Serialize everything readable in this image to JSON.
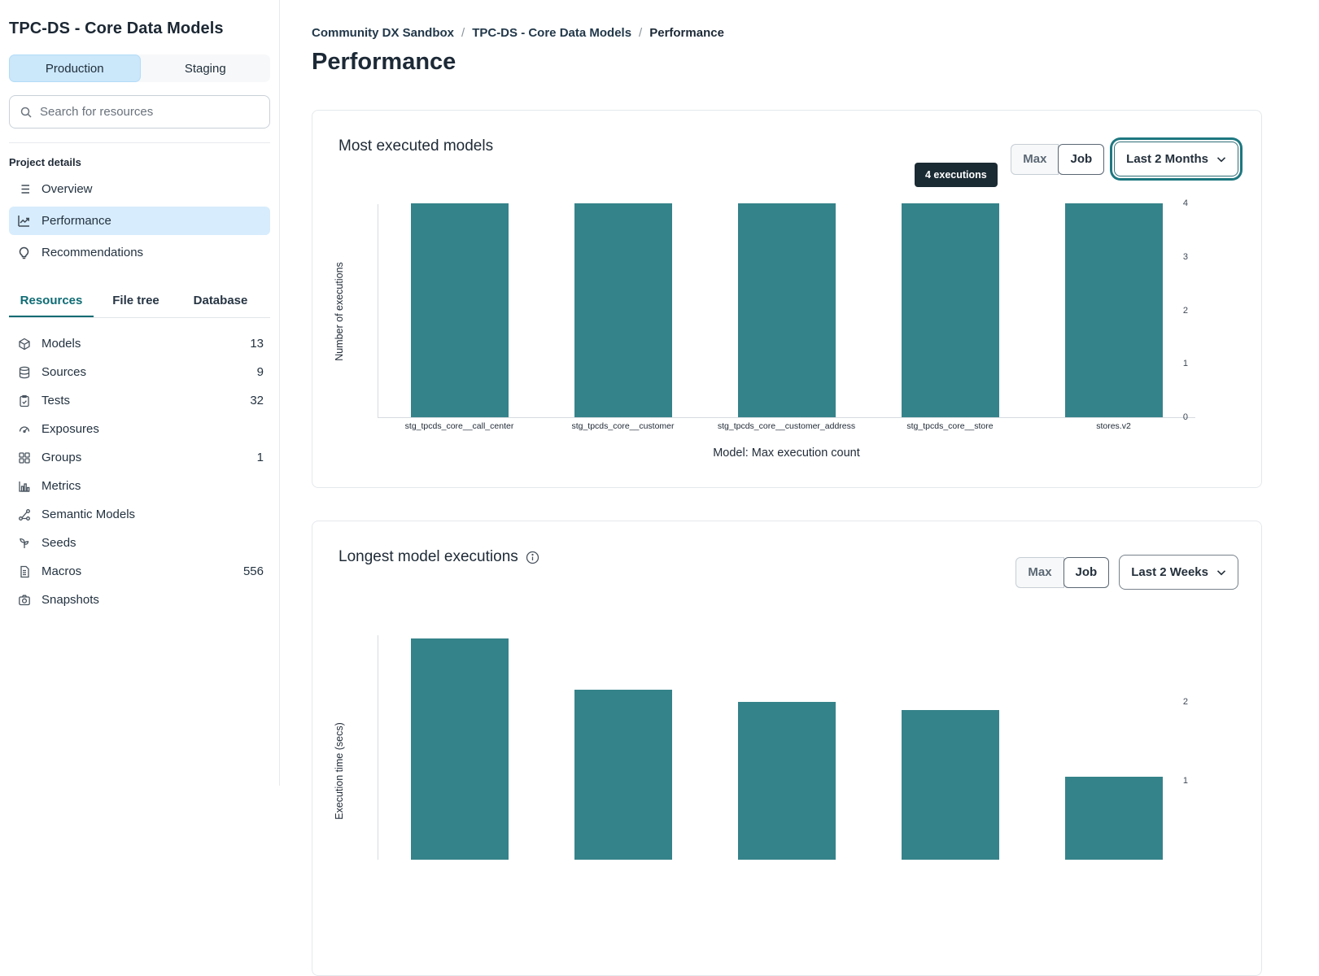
{
  "sidebar": {
    "project_title": "TPC-DS - Core Data Models",
    "environments": {
      "production": "Production",
      "staging": "Staging"
    },
    "search_placeholder": "Search for resources",
    "project_details_label": "Project details",
    "nav": [
      {
        "label": "Overview"
      },
      {
        "label": "Performance"
      },
      {
        "label": "Recommendations"
      }
    ],
    "tabs": [
      {
        "label": "Resources",
        "active": true
      },
      {
        "label": "File tree",
        "active": false
      },
      {
        "label": "Database",
        "active": false
      }
    ],
    "resources": [
      {
        "icon": "models",
        "label": "Models",
        "count": "13"
      },
      {
        "icon": "sources",
        "label": "Sources",
        "count": "9"
      },
      {
        "icon": "tests",
        "label": "Tests",
        "count": "32"
      },
      {
        "icon": "exposures",
        "label": "Exposures",
        "count": ""
      },
      {
        "icon": "groups",
        "label": "Groups",
        "count": "1"
      },
      {
        "icon": "metrics",
        "label": "Metrics",
        "count": ""
      },
      {
        "icon": "semantic-models",
        "label": "Semantic Models",
        "count": ""
      },
      {
        "icon": "seeds",
        "label": "Seeds",
        "count": ""
      },
      {
        "icon": "macros",
        "label": "Macros",
        "count": "556"
      },
      {
        "icon": "snapshots",
        "label": "Snapshots",
        "count": ""
      }
    ]
  },
  "breadcrumb": {
    "items": [
      "Community DX Sandbox",
      "TPC-DS - Core Data Models",
      "Performance"
    ]
  },
  "page_title": "Performance",
  "cards": [
    {
      "title": "Most executed models",
      "toggle": {
        "max": "Max",
        "job": "Job",
        "selected": "Job"
      },
      "range": "Last 2 Months",
      "tooltip": "4 executions"
    },
    {
      "title": "Longest model executions",
      "toggle": {
        "max": "Max",
        "job": "Job",
        "selected": "Job"
      },
      "range": "Last 2 Weeks"
    }
  ],
  "chart_data": [
    {
      "type": "bar",
      "title": "Most executed models",
      "categories": [
        "stg_tpcds_core__call_center",
        "stg_tpcds_core__customer",
        "stg_tpcds_core__customer_address",
        "stg_tpcds_core__store",
        "stores.v2"
      ],
      "values": [
        4,
        4,
        4,
        4,
        4
      ],
      "ylabel": "Number of executions",
      "xlabel": "Model: Max execution count",
      "ylim": [
        0,
        4
      ],
      "yticks": [
        0,
        1,
        2,
        3,
        4
      ],
      "bar_color": "#35838A",
      "grid": false,
      "legend": false,
      "tooltip": {
        "text": "4 executions",
        "bar_index": 3
      }
    },
    {
      "type": "bar",
      "title": "Longest model executions",
      "categories": [
        "",
        "",
        "",
        "",
        ""
      ],
      "values": [
        2.8,
        2.15,
        2.0,
        1.9,
        1.05
      ],
      "ylabel": "Execution time (secs)",
      "xlabel": "",
      "ylim": [
        0,
        2.85
      ],
      "yticks": [
        1,
        2
      ],
      "bar_color": "#35838A",
      "grid": false,
      "legend": false,
      "note": "chart bottom and x-axis labels cut off by viewport"
    }
  ],
  "colors": {
    "bar_teal": "#35838A",
    "accent_teal": "#0e6b74",
    "selected_blue": "#cbe7fa",
    "nav_active_blue": "#d7ecfc",
    "tooltip_bg": "#1b2b33",
    "text_dark": "#1c2936",
    "border_light": "#e4e8eb"
  }
}
